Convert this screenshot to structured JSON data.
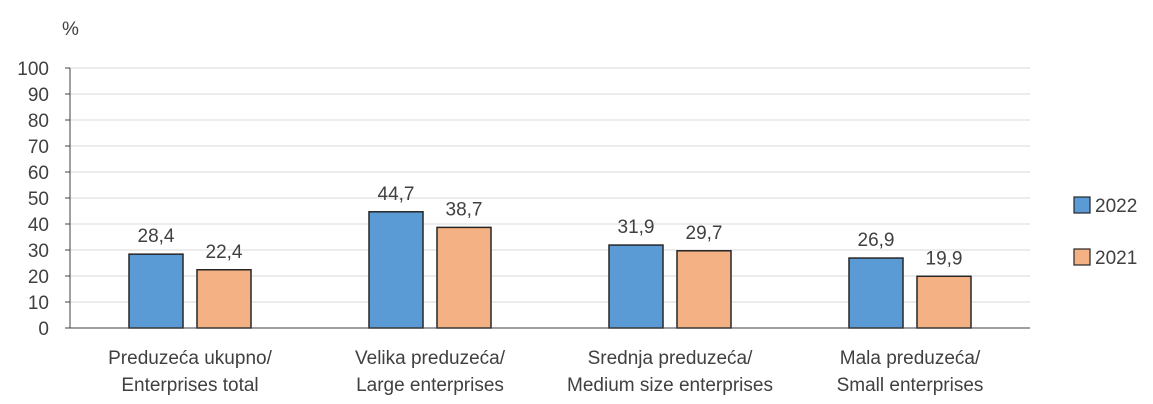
{
  "chart_data": {
    "type": "bar",
    "unit_label": "%",
    "categories": [
      [
        "Preduzeća ukupno/",
        "Enterprises total"
      ],
      [
        "Velika preduzeća/",
        "Large enterprises"
      ],
      [
        "Srednja preduzeća/",
        "Medium size enterprises"
      ],
      [
        "Mala preduzeća/",
        "Small enterprises"
      ]
    ],
    "series": [
      {
        "name": "2022",
        "color": "#5b9bd5",
        "values": [
          28.4,
          44.7,
          31.9,
          26.9
        ],
        "labels": [
          "28,4",
          "44,7",
          "31,9",
          "26,9"
        ]
      },
      {
        "name": "2021",
        "color": "#f4b183",
        "values": [
          22.4,
          38.7,
          29.7,
          19.9
        ],
        "labels": [
          "22,4",
          "38,7",
          "29,7",
          "19,9"
        ]
      }
    ],
    "ylim": [
      0,
      100
    ],
    "yticks": [
      0,
      10,
      20,
      30,
      40,
      50,
      60,
      70,
      80,
      90,
      100
    ],
    "grid": true,
    "legend_position": "right"
  }
}
